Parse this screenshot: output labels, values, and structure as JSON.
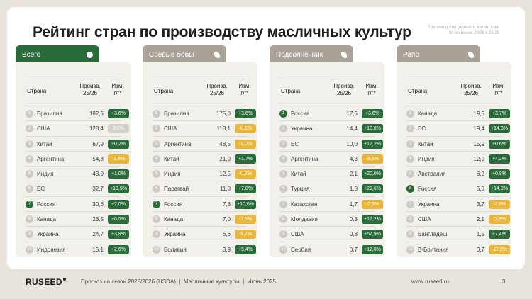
{
  "title": "Рейтинг стран по производству масличных культур",
  "note": "Производство (прогноз) в млн. тонн\n*Изменение 25/26 к 24/25",
  "columns": {
    "country": "Страна",
    "prod": "Произв.\n25/26",
    "chg": "Изм.\nг/г*"
  },
  "colors": {
    "tab_active": "#2a6b3a",
    "tab_inactive": "#a8a396",
    "up": "#2a6b3a",
    "down": "#e9b63a",
    "flat": "#d3d0c8"
  },
  "panels": [
    {
      "tab": "Всего",
      "active": true,
      "icon": "circle-icon",
      "rows": [
        {
          "rank": "1",
          "country": "Бразилия",
          "value": "182,5",
          "change": "+3,6%",
          "dir": "up"
        },
        {
          "rank": "2",
          "country": "США",
          "value": "128,4",
          "change": "0,0%",
          "dir": "flat"
        },
        {
          "rank": "3",
          "country": "Китай",
          "value": "67,9",
          "change": "+0,2%",
          "dir": "up"
        },
        {
          "rank": "4",
          "country": "Аргентина",
          "value": "54,8",
          "change": "-1,8%",
          "dir": "down"
        },
        {
          "rank": "5",
          "country": "Индия",
          "value": "43,0",
          "change": "+1,0%",
          "dir": "up"
        },
        {
          "rank": "6",
          "country": "ЕС",
          "value": "32,7",
          "change": "+13,9%",
          "dir": "up"
        },
        {
          "rank": "7",
          "country": "Россия",
          "value": "30,6",
          "change": "+7,0%",
          "dir": "up",
          "hl": true
        },
        {
          "rank": "8",
          "country": "Канада",
          "value": "26,5",
          "change": "+0,5%",
          "dir": "up"
        },
        {
          "rank": "9",
          "country": "Украина",
          "value": "24,7",
          "change": "+3,8%",
          "dir": "up"
        },
        {
          "rank": "10",
          "country": "Индонезия",
          "value": "15,1",
          "change": "+2,6%",
          "dir": "up"
        }
      ]
    },
    {
      "tab": "Соевые бобы",
      "active": false,
      "icon": "soybean-icon",
      "rows": [
        {
          "rank": "1",
          "country": "Бразилия",
          "value": "175,0",
          "change": "+3,6%",
          "dir": "up"
        },
        {
          "rank": "2",
          "country": "США",
          "value": "118,1",
          "change": "-0,6%",
          "dir": "down"
        },
        {
          "rank": "3",
          "country": "Аргентина",
          "value": "48,5",
          "change": "-1,0%",
          "dir": "down"
        },
        {
          "rank": "4",
          "country": "Китай",
          "value": "21,0",
          "change": "+1,7%",
          "dir": "up"
        },
        {
          "rank": "5",
          "country": "Индия",
          "value": "12,5",
          "change": "-0,7%",
          "dir": "down"
        },
        {
          "rank": "6",
          "country": "Парагвай",
          "value": "11,0",
          "change": "+7,8%",
          "dir": "up"
        },
        {
          "rank": "7",
          "country": "Россия",
          "value": "7,8",
          "change": "+10,6%",
          "dir": "up",
          "hl": true
        },
        {
          "rank": "8",
          "country": "Канада",
          "value": "7,0",
          "change": "-7,5%",
          "dir": "down"
        },
        {
          "rank": "9",
          "country": "Украина",
          "value": "6,6",
          "change": "-5,7%",
          "dir": "down"
        },
        {
          "rank": "10",
          "country": "Боливия",
          "value": "3,9",
          "change": "+5,4%",
          "dir": "up"
        }
      ]
    },
    {
      "tab": "Подсолнечник",
      "active": false,
      "icon": "sunflower-icon",
      "rows": [
        {
          "rank": "1",
          "country": "Россия",
          "value": "17,5",
          "change": "+3,6%",
          "dir": "up",
          "hl": true
        },
        {
          "rank": "2",
          "country": "Украина",
          "value": "14,4",
          "change": "+10,8%",
          "dir": "up"
        },
        {
          "rank": "3",
          "country": "ЕС",
          "value": "10,0",
          "change": "+17,2%",
          "dir": "up"
        },
        {
          "rank": "4",
          "country": "Аргентина",
          "value": "4,3",
          "change": "-8,5%",
          "dir": "down"
        },
        {
          "rank": "5",
          "country": "Китай",
          "value": "2,1",
          "change": "+20,0%",
          "dir": "up"
        },
        {
          "rank": "6",
          "country": "Турция",
          "value": "1,8",
          "change": "+29,6%",
          "dir": "up"
        },
        {
          "rank": "7",
          "country": "Казахстан",
          "value": "1,7",
          "change": "-7,3%",
          "dir": "down"
        },
        {
          "rank": "8",
          "country": "Молдавия",
          "value": "0,8",
          "change": "+12,2%",
          "dir": "up"
        },
        {
          "rank": "9",
          "country": "США",
          "value": "0,8",
          "change": "+57,9%",
          "dir": "up"
        },
        {
          "rank": "10",
          "country": "Сербия",
          "value": "0,7",
          "change": "+12,0%",
          "dir": "up"
        }
      ]
    },
    {
      "tab": "Рапс",
      "active": false,
      "icon": "rapeseed-icon",
      "rows": [
        {
          "rank": "1",
          "country": "Канада",
          "value": "19,5",
          "change": "+3,7%",
          "dir": "up"
        },
        {
          "rank": "2",
          "country": "ЕС",
          "value": "19,4",
          "change": "+14,8%",
          "dir": "up"
        },
        {
          "rank": "3",
          "country": "Китай",
          "value": "15,9",
          "change": "+0,6%",
          "dir": "up"
        },
        {
          "rank": "4",
          "country": "Индия",
          "value": "12,0",
          "change": "+4,2%",
          "dir": "up"
        },
        {
          "rank": "5",
          "country": "Австралия",
          "value": "6,2",
          "change": "+0,8%",
          "dir": "up"
        },
        {
          "rank": "6",
          "country": "Россия",
          "value": "5,3",
          "change": "+14,0%",
          "dir": "up",
          "hl": true
        },
        {
          "rank": "7",
          "country": "Украина",
          "value": "3,7",
          "change": "-2,6%",
          "dir": "down"
        },
        {
          "rank": "8",
          "country": "США",
          "value": "2,1",
          "change": "-5,8%",
          "dir": "down"
        },
        {
          "rank": "9",
          "country": "Бангладеш",
          "value": "1,5",
          "change": "+7,4%",
          "dir": "up"
        },
        {
          "rank": "10",
          "country": "В-Британия",
          "value": "0,7",
          "change": "-12,6%",
          "dir": "down"
        }
      ]
    }
  ],
  "footer": {
    "logo": "RUSEED",
    "text": "Прогноз на сезон 2025/2026 (USDA)  |  Масличные культуры  |  Июнь 2025",
    "url": "www.ruseed.ru",
    "page": "3"
  }
}
